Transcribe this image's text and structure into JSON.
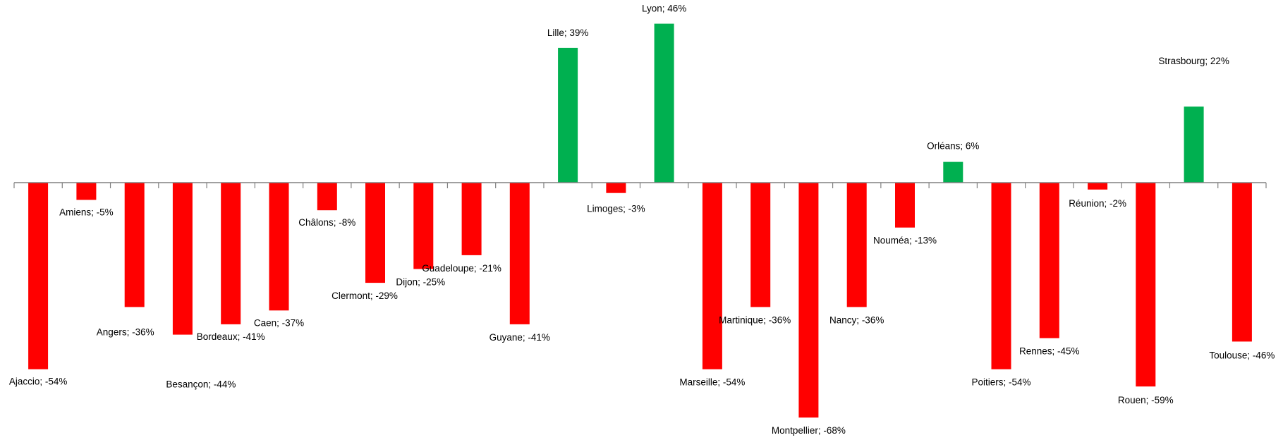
{
  "chart_data": {
    "type": "bar",
    "title": "",
    "xlabel": "",
    "ylabel": "",
    "ylim": [
      -75,
      50
    ],
    "categories": [
      "Ajaccio",
      "Amiens",
      "Angers",
      "Besançon",
      "Bordeaux",
      "Caen",
      "Châlons",
      "Clermont",
      "Dijon",
      "Guadeloupe",
      "Guyane",
      "Lille",
      "Limoges",
      "Lyon",
      "Marseille",
      "Martinique",
      "Montpellier",
      "Nancy",
      "Nouméa",
      "Orléans",
      "Poitiers",
      "Rennes",
      "Réunion",
      "Rouen",
      "Strasbourg",
      "Toulouse"
    ],
    "values": [
      -54,
      -5,
      -36,
      -44,
      -41,
      -37,
      -8,
      -29,
      -25,
      -21,
      -41,
      39,
      -3,
      46,
      -54,
      -36,
      -68,
      -36,
      -13,
      6,
      -54,
      -45,
      -2,
      -59,
      22,
      -46
    ],
    "labels": [
      "Ajaccio; -54%",
      "Amiens; -5%",
      "Angers; -36%",
      "Besançon; -44%",
      "Bordeaux; -41%",
      "Caen; -37%",
      "Châlons; -8%",
      "Clermont; -29%",
      "Dijon; -25%",
      "Guadeloupe; -21%",
      "Guyane; -41%",
      "Lille; 39%",
      "Limoges; -3%",
      "Lyon; 46%",
      "Marseille; -54%",
      "Martinique; -36%",
      "Montpellier; -68%",
      "Nancy; -36%",
      "Nouméa; -13%",
      "Orléans; 6%",
      "Poitiers; -54%",
      "Rennes; -45%",
      "Réunion; -2%",
      "Rouen; -59%",
      "Strasbourg; 22%",
      "Toulouse; -46%"
    ],
    "colors": {
      "positive": "#00b050",
      "negative": "#ff0000",
      "axis": "#808080"
    },
    "grid": false,
    "legend": "none"
  }
}
